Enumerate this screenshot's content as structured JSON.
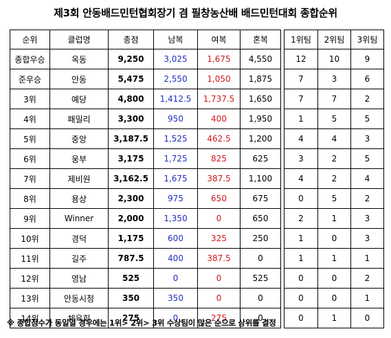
{
  "title": "제3회 안동배드민턴협회장기 겸 필창농산배 배드민턴대회 종합순위",
  "headers": {
    "rank": "순위",
    "club": "클럽명",
    "total": "총점",
    "mens_doubles": "남복",
    "womens_doubles": "여복",
    "mixed_doubles": "혼복",
    "team1": "1위팀",
    "team2": "2위팀",
    "team3": "3위팀"
  },
  "rows": [
    {
      "rank": "종합우승",
      "club": "옥동",
      "total": "9,250",
      "mens": "3,025",
      "womens": "1,675",
      "mixed": "4,550",
      "t1": "12",
      "t2": "10",
      "t3": "9"
    },
    {
      "rank": "준우승",
      "club": "안동",
      "total": "5,475",
      "mens": "2,550",
      "womens": "1,050",
      "mixed": "1,875",
      "t1": "7",
      "t2": "3",
      "t3": "6"
    },
    {
      "rank": "3위",
      "club": "예당",
      "total": "4,800",
      "mens": "1,412.5",
      "womens": "1,737.5",
      "mixed": "1,650",
      "t1": "7",
      "t2": "7",
      "t3": "2"
    },
    {
      "rank": "4위",
      "club": "패밀리",
      "total": "3,300",
      "mens": "950",
      "womens": "400",
      "mixed": "1,950",
      "t1": "1",
      "t2": "5",
      "t3": "5"
    },
    {
      "rank": "5위",
      "club": "중앙",
      "total": "3,187.5",
      "mens": "1,525",
      "womens": "462.5",
      "mixed": "1,200",
      "t1": "4",
      "t2": "4",
      "t3": "3"
    },
    {
      "rank": "6위",
      "club": "웅부",
      "total": "3,175",
      "mens": "1,725",
      "womens": "825",
      "mixed": "625",
      "t1": "3",
      "t2": "2",
      "t3": "5"
    },
    {
      "rank": "7위",
      "club": "제비원",
      "total": "3,162.5",
      "mens": "1,675",
      "womens": "387.5",
      "mixed": "1,100",
      "t1": "4",
      "t2": "2",
      "t3": "4"
    },
    {
      "rank": "8위",
      "club": "용상",
      "total": "2,300",
      "mens": "975",
      "womens": "650",
      "mixed": "675",
      "t1": "0",
      "t2": "5",
      "t3": "2"
    },
    {
      "rank": "9위",
      "club": "Winner",
      "total": "2,000",
      "mens": "1,350",
      "womens": "0",
      "mixed": "650",
      "t1": "2",
      "t2": "1",
      "t3": "3"
    },
    {
      "rank": "10위",
      "club": "경덕",
      "total": "1,175",
      "mens": "600",
      "womens": "325",
      "mixed": "250",
      "t1": "1",
      "t2": "0",
      "t3": "3"
    },
    {
      "rank": "11위",
      "club": "길주",
      "total": "787.5",
      "mens": "400",
      "womens": "387.5",
      "mixed": "0",
      "t1": "1",
      "t2": "1",
      "t3": "1"
    },
    {
      "rank": "12위",
      "club": "영남",
      "total": "525",
      "mens": "0",
      "womens": "0",
      "mixed": "525",
      "t1": "0",
      "t2": "0",
      "t3": "2"
    },
    {
      "rank": "13위",
      "club": "안동시청",
      "total": "350",
      "mens": "350",
      "womens": "0",
      "mixed": "0",
      "t1": "0",
      "t2": "0",
      "t3": "1"
    },
    {
      "rank": "14위",
      "club": "체육회",
      "total": "275",
      "mens": "0",
      "womens": "275",
      "mixed": "0",
      "t1": "0",
      "t2": "1",
      "t3": "0"
    }
  ],
  "note": "※ 종합점수가 동일일 경우에는 1위> 2위> 3위 수상팀이 많은 순으로 상위를 결정",
  "colors": {
    "mens": "#1f2fbf",
    "womens": "#d01818"
  }
}
